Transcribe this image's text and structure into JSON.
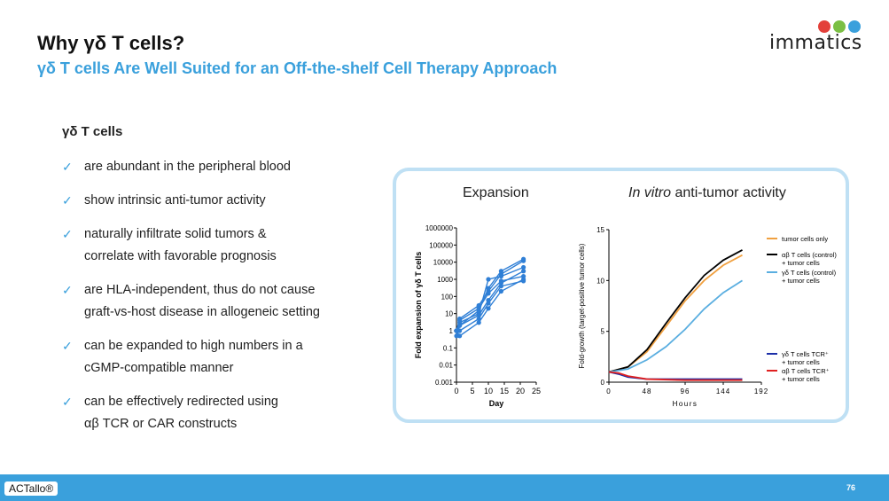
{
  "header": {
    "title": "Why γδ T cells?",
    "subtitle": "γδ T cells Are Well Suited for an Off-the-shelf Cell Therapy Approach"
  },
  "logo": {
    "text": "immatics",
    "colors": [
      "#e3403a",
      "#7bbf44",
      "#3aa0dc"
    ]
  },
  "content": {
    "heading": "γδ T cells",
    "check_icon": "✓",
    "bullets": [
      {
        "line1": "are abundant in the peripheral blood",
        "line2": ""
      },
      {
        "line1": "show intrinsic anti-tumor activity",
        "line2": ""
      },
      {
        "line1": "naturally infiltrate solid tumors &",
        "line2": "correlate with favorable prognosis"
      },
      {
        "line1": "are HLA-independent, thus do not cause",
        "line2": "graft-vs-host disease in allogeneic setting"
      },
      {
        "line1": "can be expanded to high numbers in a",
        "line2": "cGMP-compatible manner"
      },
      {
        "line1": "can be effectively redirected using",
        "line2": "αβ TCR or CAR constructs"
      }
    ]
  },
  "chart_data": [
    {
      "type": "line",
      "title": "Expansion",
      "xlabel": "Day",
      "ylabel": "Fold expansion of γδ T cells",
      "xlim": [
        0,
        25
      ],
      "ylim": [
        0.001,
        1000000
      ],
      "yscale": "log",
      "xticks": [
        "0",
        "5",
        "10",
        "15",
        "20",
        "25"
      ],
      "yticks": [
        "0.001",
        "0.01",
        "0.1",
        "1",
        "10",
        "100",
        "1000",
        "10000",
        "100000",
        "1000000"
      ],
      "color": "#2f7fd6",
      "series": [
        {
          "x": [
            0,
            1,
            7,
            10,
            14,
            21
          ],
          "y": [
            1,
            3,
            10,
            1000,
            1500,
            5000
          ]
        },
        {
          "x": [
            0,
            1,
            7,
            10,
            14,
            21
          ],
          "y": [
            1,
            5,
            30,
            200,
            2000,
            12000
          ]
        },
        {
          "x": [
            0,
            1,
            7,
            10,
            14,
            21
          ],
          "y": [
            1,
            2,
            8,
            60,
            600,
            3000
          ]
        },
        {
          "x": [
            0,
            1,
            7,
            10,
            14,
            21
          ],
          "y": [
            1,
            4,
            20,
            150,
            800,
            1500
          ]
        },
        {
          "x": [
            0,
            1,
            7,
            10,
            14,
            21
          ],
          "y": [
            1,
            1,
            5,
            40,
            400,
            800
          ]
        },
        {
          "x": [
            0,
            1,
            7,
            10,
            14,
            21
          ],
          "y": [
            0.5,
            2,
            15,
            300,
            3000,
            15000
          ]
        },
        {
          "x": [
            0,
            1,
            7,
            10,
            14,
            21
          ],
          "y": [
            1,
            0.5,
            3,
            20,
            200,
            1000
          ]
        }
      ]
    },
    {
      "type": "line",
      "title": "anti-tumor activity",
      "title_italic": "In vitro",
      "xlabel": "Hours",
      "ylabel": "Fold-growth (target-positive tumor cells)",
      "xlim": [
        0,
        192
      ],
      "ylim": [
        0,
        15
      ],
      "xticks": [
        "0",
        "48",
        "96",
        "144",
        "192"
      ],
      "yticks": [
        "0",
        "5",
        "10",
        "15"
      ],
      "series": [
        {
          "name": "tumor cells only",
          "color": "#f0a040",
          "x": [
            0,
            24,
            48,
            72,
            96,
            120,
            144,
            168
          ],
          "y": [
            1,
            1.5,
            3,
            5.5,
            8,
            10,
            11.5,
            12.5
          ]
        },
        {
          "name": "αβ T cells (control) + tumor cells",
          "color": "#000000",
          "x": [
            0,
            24,
            48,
            72,
            96,
            120,
            144,
            168
          ],
          "y": [
            1,
            1.5,
            3.2,
            5.8,
            8.3,
            10.5,
            12,
            13
          ]
        },
        {
          "name": "γδ T cells (control) + tumor cells",
          "color": "#5aaee0",
          "x": [
            0,
            24,
            48,
            72,
            96,
            120,
            144,
            168
          ],
          "y": [
            1,
            1.3,
            2.2,
            3.5,
            5.2,
            7.2,
            8.8,
            10
          ]
        },
        {
          "name": "γδ T cells TCR⁺ + tumor cells",
          "color": "#1c2fa8",
          "x": [
            0,
            12,
            24,
            48,
            96,
            168
          ],
          "y": [
            1,
            0.8,
            0.5,
            0.3,
            0.3,
            0.3
          ]
        },
        {
          "name": "αβ T cells TCR⁺ + tumor cells",
          "color": "#e02020",
          "x": [
            0,
            12,
            24,
            48,
            96,
            168
          ],
          "y": [
            1,
            0.9,
            0.6,
            0.3,
            0.2,
            0.2
          ]
        }
      ]
    }
  ],
  "footer": {
    "tag": "ACTallo®",
    "page": "76"
  }
}
